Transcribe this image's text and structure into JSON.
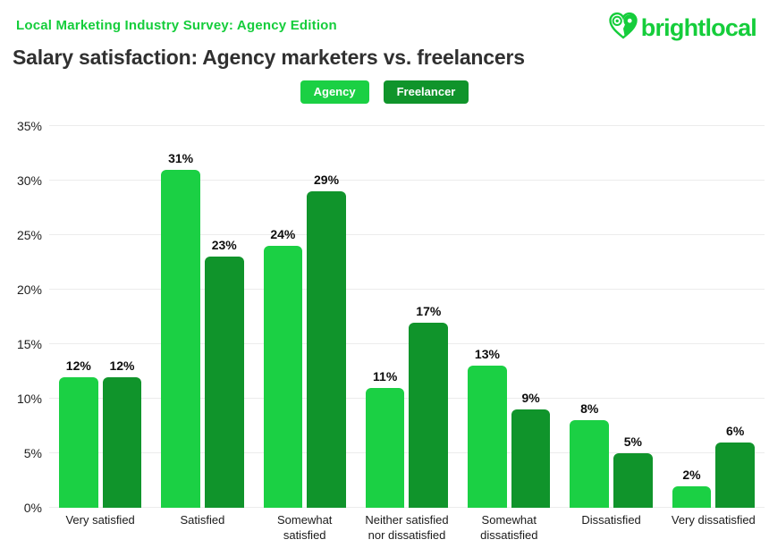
{
  "header": {
    "eyebrow": "Local Marketing Industry Survey: Agency Edition",
    "title": "Salary satisfaction: Agency marketers vs. freelancers",
    "logo_text": "brightlocal"
  },
  "legend": [
    {
      "label": "Agency",
      "color": "#1bd044"
    },
    {
      "label": "Freelancer",
      "color": "#10942b"
    }
  ],
  "colors": {
    "brand_green": "#15cd3b",
    "agency_bar": "#1bd044",
    "freelancer_bar": "#10942b",
    "title_text": "#303030",
    "gridline": "#ececec"
  },
  "chart_data": {
    "type": "bar",
    "title": "Salary satisfaction: Agency marketers vs. freelancers",
    "categories": [
      "Very satisfied",
      "Satisfied",
      "Somewhat satisfied",
      "Neither satisfied nor dissatisfied",
      "Somewhat dissatisfied",
      "Dissatisfied",
      "Very dissatisfied"
    ],
    "series": [
      {
        "name": "Agency",
        "values": [
          12,
          31,
          24,
          11,
          13,
          8,
          2
        ],
        "color": "#1bd044"
      },
      {
        "name": "Freelancer",
        "values": [
          12,
          23,
          29,
          17,
          9,
          5,
          6
        ],
        "color": "#10942b"
      }
    ],
    "value_suffix": "%",
    "y_ticks": [
      "0%",
      "5%",
      "10%",
      "15%",
      "20%",
      "25%",
      "30%",
      "35%"
    ],
    "ylim": [
      0,
      35
    ],
    "grid": true,
    "legend_position": "top-center",
    "xlabel": "",
    "ylabel": ""
  }
}
